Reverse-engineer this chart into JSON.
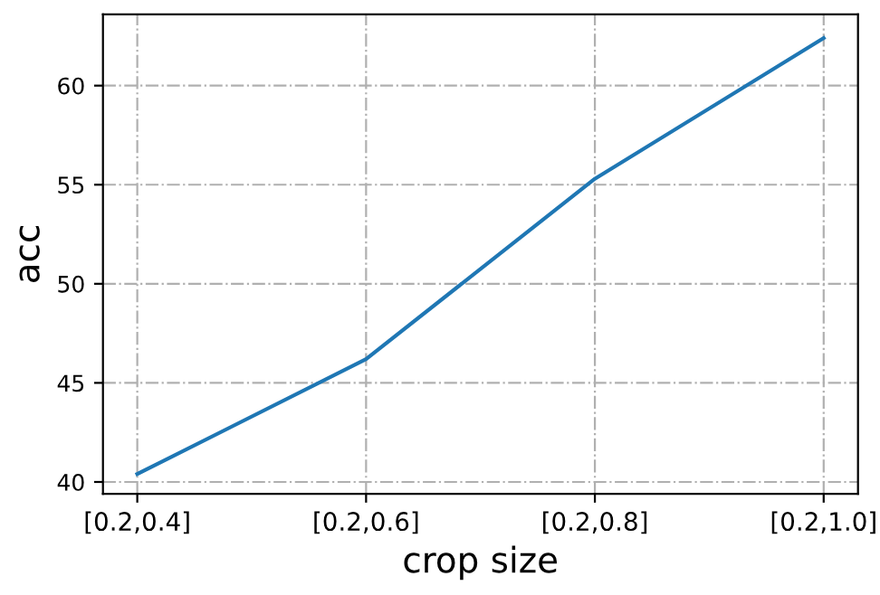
{
  "chart_data": {
    "type": "line",
    "xlabel": "crop size",
    "ylabel": "acc",
    "categories": [
      "[0.2,0.4]",
      "[0.2,0.6]",
      "[0.2,0.8]",
      "[0.2,1.0]"
    ],
    "series": [
      {
        "color": "#1f77b4",
        "values": [
          40.4,
          46.2,
          55.3,
          62.4
        ]
      }
    ],
    "ylim": [
      39.4,
      63.6
    ],
    "yticks": [
      40,
      45,
      50,
      55,
      60
    ],
    "grid": true,
    "line_style": "solid"
  }
}
